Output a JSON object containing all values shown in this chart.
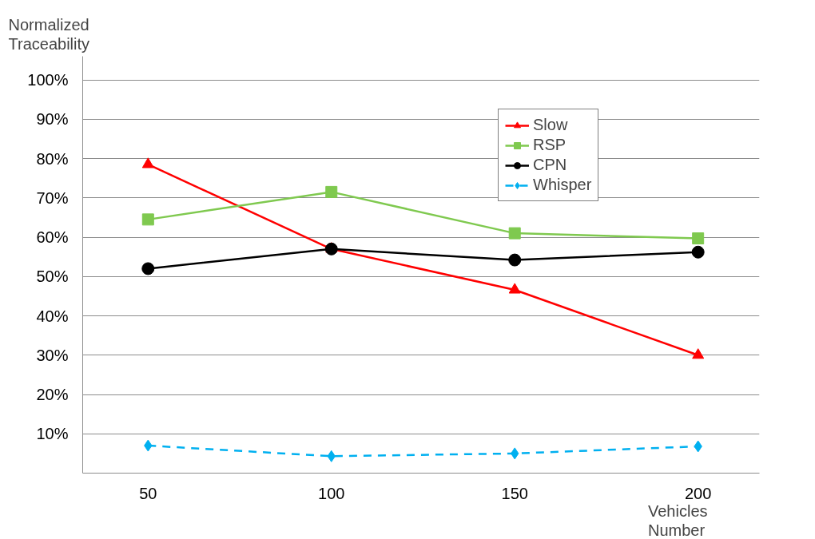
{
  "chart_data": {
    "type": "line",
    "ylabel": "Normalized Traceability",
    "xlabel": "Vehicles Number",
    "categories": [
      "50",
      "100",
      "150",
      "200"
    ],
    "series": [
      {
        "name": "Slow",
        "color": "#ff0000",
        "marker": "triangle",
        "line_style": "solid",
        "values": [
          78.5,
          57,
          46.6,
          30
        ]
      },
      {
        "name": "RSP",
        "color": "#7fc94f",
        "marker": "square",
        "line_style": "solid",
        "values": [
          64.5,
          71.5,
          61,
          59.7
        ]
      },
      {
        "name": "CPN",
        "color": "#000000",
        "marker": "circle",
        "line_style": "solid",
        "values": [
          52,
          57,
          54.2,
          56.2
        ]
      },
      {
        "name": "Whisper",
        "color": "#00b0f0",
        "marker": "diamond",
        "line_style": "dashed",
        "values": [
          7,
          4.3,
          5,
          6.8
        ]
      }
    ],
    "ylim": [
      0,
      106
    ],
    "yticks": [
      {
        "value": 10,
        "label": "10%"
      },
      {
        "value": 20,
        "label": "20%"
      },
      {
        "value": 30,
        "label": "30%"
      },
      {
        "value": 40,
        "label": "40%"
      },
      {
        "value": 50,
        "label": "50%"
      },
      {
        "value": 60,
        "label": "60%"
      },
      {
        "value": 70,
        "label": "70%"
      },
      {
        "value": 80,
        "label": "80%"
      },
      {
        "value": 90,
        "label": "90%"
      },
      {
        "value": 100,
        "label": "100%"
      }
    ],
    "grid": "y",
    "legend": "top right"
  }
}
